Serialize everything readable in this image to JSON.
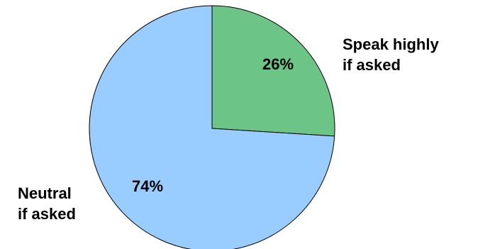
{
  "chart_data": {
    "type": "pie",
    "slices": [
      {
        "category_lines": [
          "Speak highly",
          "if asked"
        ],
        "value": 26,
        "value_label": "26%",
        "color": "#6CC486"
      },
      {
        "category_lines": [
          "Neutral",
          "if asked"
        ],
        "value": 74,
        "value_label": "74%",
        "color": "#99CCFF"
      }
    ],
    "start_angle": "12 o'clock",
    "direction": "clockwise",
    "legend": "none"
  }
}
